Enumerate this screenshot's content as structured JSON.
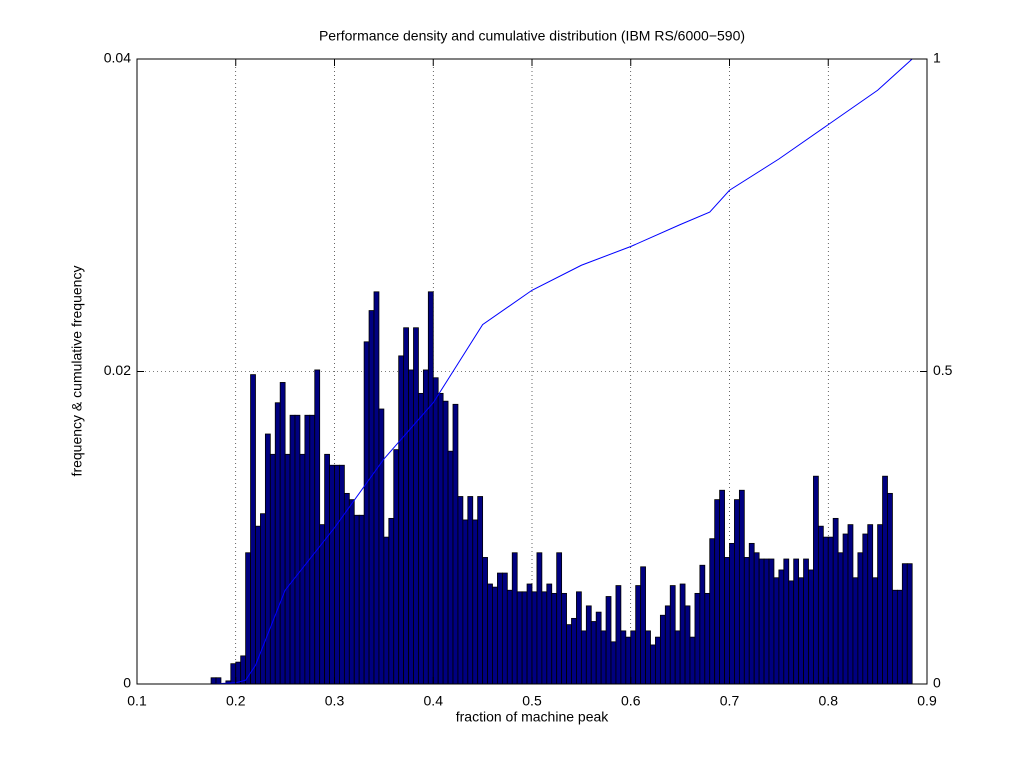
{
  "chart_data": {
    "type": "histogram",
    "title": "Performance density and cumulative distribution (IBM RS/6000−590)",
    "xlabel": "fraction of machine peak",
    "ylabel": "frequency & cumulative frequency",
    "xlim": [
      0.1,
      0.9
    ],
    "ylim": [
      0,
      0.04
    ],
    "y2lim": [
      0,
      1
    ],
    "xticks": [
      0.1,
      0.2,
      0.3,
      0.4,
      0.5,
      0.6,
      0.7,
      0.8,
      0.9
    ],
    "yticks": [
      0,
      0.02,
      0.04
    ],
    "y2ticks": [
      0,
      0.5,
      1
    ],
    "grid": true,
    "series": [
      {
        "type": "histogram",
        "color": "#000080",
        "edgecolor": "#000000",
        "bins": [
          0.175,
          0.18,
          0.185,
          0.19,
          0.195,
          0.2,
          0.205,
          0.21,
          0.215,
          0.22,
          0.225,
          0.23,
          0.235,
          0.24,
          0.245,
          0.25,
          0.255,
          0.26,
          0.265,
          0.27,
          0.275,
          0.28,
          0.285,
          0.29,
          0.295,
          0.3,
          0.305,
          0.31,
          0.315,
          0.32,
          0.325,
          0.33,
          0.335,
          0.34,
          0.345,
          0.35,
          0.355,
          0.36,
          0.365,
          0.37,
          0.375,
          0.38,
          0.385,
          0.39,
          0.395,
          0.4,
          0.405,
          0.41,
          0.415,
          0.42,
          0.425,
          0.43,
          0.435,
          0.44,
          0.445,
          0.45,
          0.455,
          0.46,
          0.465,
          0.47,
          0.475,
          0.48,
          0.485,
          0.49,
          0.495,
          0.5,
          0.505,
          0.51,
          0.515,
          0.52,
          0.525,
          0.53,
          0.535,
          0.54,
          0.545,
          0.55,
          0.555,
          0.56,
          0.565,
          0.57,
          0.575,
          0.58,
          0.585,
          0.59,
          0.595,
          0.6,
          0.605,
          0.61,
          0.615,
          0.62,
          0.625,
          0.63,
          0.635,
          0.64,
          0.645,
          0.65,
          0.655,
          0.66,
          0.665,
          0.67,
          0.675,
          0.68,
          0.685,
          0.69,
          0.695,
          0.7,
          0.705,
          0.71,
          0.715,
          0.72,
          0.725,
          0.73,
          0.735,
          0.74,
          0.745,
          0.75,
          0.755,
          0.76,
          0.765,
          0.77,
          0.775,
          0.78,
          0.785,
          0.79,
          0.795,
          0.8,
          0.805,
          0.81,
          0.815,
          0.82,
          0.825,
          0.83,
          0.835,
          0.84,
          0.845,
          0.85,
          0.855,
          0.86,
          0.865,
          0.87,
          0.875,
          0.88,
          0.885
        ],
        "values": [
          0.0004,
          0.0004,
          0,
          0.0002,
          0.0013,
          0.0014,
          0.0018,
          0.0084,
          0.0198,
          0.0101,
          0.0109,
          0.016,
          0.0147,
          0.018,
          0.0193,
          0.0147,
          0.0172,
          0.0172,
          0.0147,
          0.0172,
          0.0172,
          0.0201,
          0.0102,
          0.0147,
          0.014,
          0.014,
          0.014,
          0.0122,
          0.0118,
          0.0108,
          0.0108,
          0.0219,
          0.0239,
          0.0251,
          0.0176,
          0.0094,
          0.0106,
          0.015,
          0.021,
          0.0228,
          0.0201,
          0.0228,
          0.0186,
          0.0201,
          0.0251,
          0.0196,
          0.0186,
          0.0181,
          0.0149,
          0.0179,
          0.012,
          0.0105,
          0.012,
          0.0105,
          0.012,
          0.0081,
          0.0064,
          0.0062,
          0.0071,
          0.0071,
          0.006,
          0.0084,
          0.0059,
          0.0059,
          0.0064,
          0.0059,
          0.0084,
          0.0059,
          0.0064,
          0.0058,
          0.0084,
          0.0058,
          0.0038,
          0.0042,
          0.0059,
          0.0034,
          0.005,
          0.004,
          0.0046,
          0.0034,
          0.0056,
          0.0027,
          0.0063,
          0.0034,
          0.003,
          0.0034,
          0.0063,
          0.0075,
          0.0034,
          0.0025,
          0.003,
          0.0044,
          0.005,
          0.0063,
          0.0034,
          0.0064,
          0.005,
          0.003,
          0.0058,
          0.0076,
          0.0058,
          0.0093,
          0.0118,
          0.0124,
          0.0081,
          0.009,
          0.0118,
          0.0124,
          0.0081,
          0.009,
          0.0084,
          0.008,
          0.008,
          0.008,
          0.0068,
          0.0073,
          0.008,
          0.0066,
          0.008,
          0.0068,
          0.008,
          0.0073,
          0.0133,
          0.0101,
          0.0094,
          0.0094,
          0.0106,
          0.0084,
          0.0096,
          0.0102,
          0.0068,
          0.0084,
          0.0096,
          0.0102,
          0.0068,
          0.0102,
          0.0133,
          0.0122,
          0.006,
          0.006,
          0.0077,
          0.0077
        ]
      },
      {
        "type": "line",
        "color": "#0000ff",
        "axis": "y2",
        "x": [
          0.175,
          0.2,
          0.21,
          0.22,
          0.25,
          0.3,
          0.35,
          0.4,
          0.42,
          0.45,
          0.5,
          0.55,
          0.6,
          0.65,
          0.68,
          0.7,
          0.75,
          0.8,
          0.85,
          0.885
        ],
        "values": [
          0,
          0.002,
          0.006,
          0.03,
          0.15,
          0.25,
          0.36,
          0.45,
          0.5,
          0.575,
          0.63,
          0.67,
          0.7,
          0.735,
          0.755,
          0.79,
          0.84,
          0.895,
          0.95,
          1
        ]
      }
    ]
  }
}
